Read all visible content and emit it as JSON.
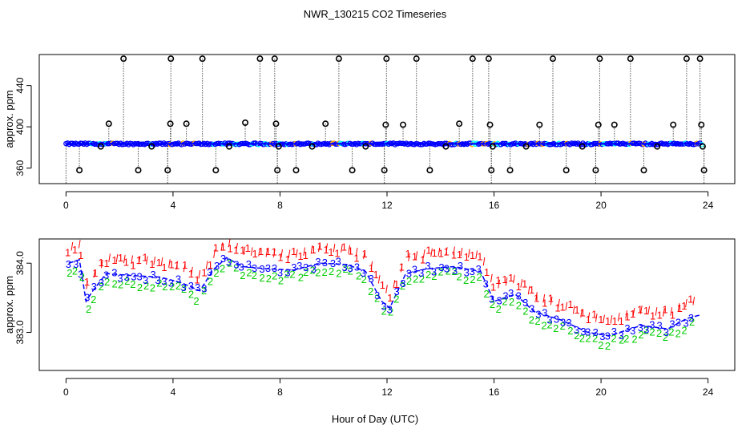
{
  "figure": {
    "title": "NWR_130215  CO2 Timeseries",
    "xlabel": "Hour of Day (UTC)"
  },
  "colors": {
    "axis": "#000000",
    "series1": "#ff0000",
    "series2": "#00cc00",
    "series3": "#0000ff",
    "cyan": "#00ffff",
    "orange": "#ffa500",
    "outlier": "#000000"
  },
  "chart_data": [
    {
      "type": "scatter",
      "panel": "top",
      "ylabel": "approx. ppm",
      "xlim": [
        -1,
        25
      ],
      "ylim": [
        345,
        470
      ],
      "xticks": [
        0,
        4,
        8,
        12,
        16,
        20,
        24
      ],
      "yticks": [
        360,
        400,
        440
      ],
      "grid": false,
      "baseline_ppm": 383.5,
      "spike_markers": [
        {
          "x": 0.5,
          "y": 358
        },
        {
          "x": 1.3,
          "y": 381
        },
        {
          "x": 1.6,
          "y": 403
        },
        {
          "x": 2.15,
          "y": 466
        },
        {
          "x": 2.7,
          "y": 358
        },
        {
          "x": 3.2,
          "y": 381
        },
        {
          "x": 3.8,
          "y": 358
        },
        {
          "x": 3.9,
          "y": 403
        },
        {
          "x": 3.92,
          "y": 466
        },
        {
          "x": 4.5,
          "y": 403
        },
        {
          "x": 5.1,
          "y": 466
        },
        {
          "x": 5.6,
          "y": 358
        },
        {
          "x": 6.1,
          "y": 381
        },
        {
          "x": 6.7,
          "y": 404
        },
        {
          "x": 7.25,
          "y": 466
        },
        {
          "x": 7.8,
          "y": 466
        },
        {
          "x": 7.85,
          "y": 403
        },
        {
          "x": 7.9,
          "y": 358
        },
        {
          "x": 7.95,
          "y": 381
        },
        {
          "x": 8.6,
          "y": 358
        },
        {
          "x": 9.2,
          "y": 381
        },
        {
          "x": 9.7,
          "y": 403
        },
        {
          "x": 10.2,
          "y": 466
        },
        {
          "x": 10.7,
          "y": 358
        },
        {
          "x": 11.2,
          "y": 381
        },
        {
          "x": 11.9,
          "y": 358
        },
        {
          "x": 11.95,
          "y": 402
        },
        {
          "x": 11.98,
          "y": 466
        },
        {
          "x": 12.6,
          "y": 402
        },
        {
          "x": 13.1,
          "y": 466
        },
        {
          "x": 13.6,
          "y": 358
        },
        {
          "x": 14.2,
          "y": 381
        },
        {
          "x": 14.7,
          "y": 403
        },
        {
          "x": 15.2,
          "y": 466
        },
        {
          "x": 15.8,
          "y": 466
        },
        {
          "x": 15.85,
          "y": 402
        },
        {
          "x": 15.9,
          "y": 358
        },
        {
          "x": 15.95,
          "y": 381
        },
        {
          "x": 16.6,
          "y": 358
        },
        {
          "x": 17.2,
          "y": 381
        },
        {
          "x": 17.7,
          "y": 402
        },
        {
          "x": 18.2,
          "y": 466
        },
        {
          "x": 18.7,
          "y": 358
        },
        {
          "x": 19.3,
          "y": 381
        },
        {
          "x": 19.8,
          "y": 358
        },
        {
          "x": 19.9,
          "y": 402
        },
        {
          "x": 19.95,
          "y": 466
        },
        {
          "x": 20.5,
          "y": 402
        },
        {
          "x": 21.1,
          "y": 466
        },
        {
          "x": 21.6,
          "y": 358
        },
        {
          "x": 22.1,
          "y": 381
        },
        {
          "x": 22.7,
          "y": 402
        },
        {
          "x": 23.2,
          "y": 466
        },
        {
          "x": 23.7,
          "y": 466
        },
        {
          "x": 23.75,
          "y": 402
        },
        {
          "x": 23.8,
          "y": 381
        },
        {
          "x": 23.85,
          "y": 358
        }
      ]
    },
    {
      "type": "scatter",
      "panel": "bottom",
      "ylabel": "approx. ppm",
      "xlim": [
        -1,
        25
      ],
      "ylim": [
        382.45,
        384.35
      ],
      "xticks": [
        0,
        4,
        8,
        12,
        16,
        20,
        24
      ],
      "yticks": [
        383.0,
        384.0
      ],
      "ytick_labels": [
        "383.0",
        "384.0"
      ],
      "grid": false,
      "series": [
        {
          "name": "1",
          "symbol": "1",
          "offset": 0.22,
          "noise": 0.07
        },
        {
          "name": "2",
          "symbol": "2",
          "offset": -0.1,
          "noise": 0.06
        },
        {
          "name": "3",
          "symbol": "3",
          "offset": 0.0,
          "noise": 0.05
        }
      ],
      "trend": [
        {
          "x": 0.1,
          "y": 384.0
        },
        {
          "x": 0.5,
          "y": 384.05
        },
        {
          "x": 0.75,
          "y": 383.45
        },
        {
          "x": 1.0,
          "y": 383.6
        },
        {
          "x": 1.5,
          "y": 383.85
        },
        {
          "x": 2.5,
          "y": 383.82
        },
        {
          "x": 3.5,
          "y": 383.8
        },
        {
          "x": 4.3,
          "y": 383.72
        },
        {
          "x": 5.0,
          "y": 383.6
        },
        {
          "x": 5.5,
          "y": 383.9
        },
        {
          "x": 6.0,
          "y": 384.08
        },
        {
          "x": 6.6,
          "y": 383.95
        },
        {
          "x": 7.5,
          "y": 383.92
        },
        {
          "x": 8.5,
          "y": 383.9
        },
        {
          "x": 9.5,
          "y": 384.0
        },
        {
          "x": 10.5,
          "y": 383.98
        },
        {
          "x": 11.2,
          "y": 383.88
        },
        {
          "x": 11.8,
          "y": 383.45
        },
        {
          "x": 12.1,
          "y": 383.35
        },
        {
          "x": 12.7,
          "y": 383.85
        },
        {
          "x": 13.5,
          "y": 383.92
        },
        {
          "x": 14.5,
          "y": 383.95
        },
        {
          "x": 15.5,
          "y": 383.88
        },
        {
          "x": 16.0,
          "y": 383.45
        },
        {
          "x": 16.8,
          "y": 383.55
        },
        {
          "x": 17.5,
          "y": 383.3
        },
        {
          "x": 18.5,
          "y": 383.18
        },
        {
          "x": 19.5,
          "y": 383.0
        },
        {
          "x": 20.3,
          "y": 382.95
        },
        {
          "x": 21.5,
          "y": 383.1
        },
        {
          "x": 22.5,
          "y": 383.05
        },
        {
          "x": 23.2,
          "y": 383.2
        },
        {
          "x": 23.7,
          "y": 383.25
        }
      ]
    }
  ]
}
